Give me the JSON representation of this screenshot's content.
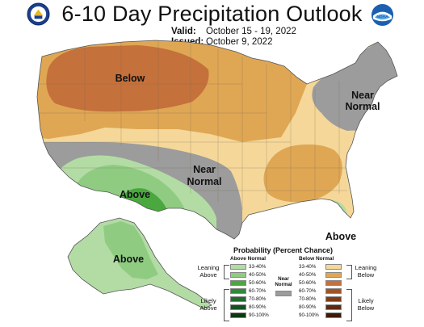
{
  "header": {
    "title": "6-10 Day Precipitation Outlook",
    "valid_label": "Valid:",
    "valid_value": "October 15 - 19, 2022",
    "issued_label": "Issued:",
    "issued_value": "October 9, 2022"
  },
  "logos": {
    "left": "department-of-commerce-seal-icon",
    "right": "noaa-logo-icon"
  },
  "map": {
    "labels": {
      "below": "Below",
      "near_normal_line1": "Near",
      "near_normal_line2": "Normal",
      "near_normal_ne_line1": "Near",
      "near_normal_ne_line2": "Normal",
      "above_sw": "Above",
      "above_fl": "Above",
      "above_ak": "Above"
    },
    "colors": {
      "near": "#9c9c9c",
      "above_33_40": "#b3dca5",
      "above_40_50": "#8fcc82",
      "above_50_60": "#4aa83e",
      "below_33_40": "#f5d899",
      "below_40_50": "#dfa754",
      "below_50_60": "#c5713b"
    }
  },
  "legend": {
    "title": "Probability (Percent Chance)",
    "above_header": "Above Normal",
    "below_header": "Below Normal",
    "leaning_above": [
      "Leaning",
      "Above"
    ],
    "likely_above": [
      "Likely",
      "Above"
    ],
    "leaning_below": [
      "Leaning",
      "Below"
    ],
    "likely_below": [
      "Likely",
      "Below"
    ],
    "near_normal": [
      "Near",
      "Normal"
    ],
    "above_bins": [
      {
        "label": "33-40%",
        "color": "#b3dca5"
      },
      {
        "label": "40-50%",
        "color": "#8fcc82"
      },
      {
        "label": "50-60%",
        "color": "#4aa83e"
      },
      {
        "label": "60-70%",
        "color": "#2f8a3a"
      },
      {
        "label": "70-80%",
        "color": "#1f6c2e"
      },
      {
        "label": "80-90%",
        "color": "#14521f"
      },
      {
        "label": "90-100%",
        "color": "#0b3812"
      }
    ],
    "below_bins": [
      {
        "label": "33-40%",
        "color": "#f5d899"
      },
      {
        "label": "40-50%",
        "color": "#dfa754"
      },
      {
        "label": "50-60%",
        "color": "#c5713b"
      },
      {
        "label": "60-70%",
        "color": "#a05425"
      },
      {
        "label": "70-80%",
        "color": "#7e3d17"
      },
      {
        "label": "80-90%",
        "color": "#5c2a0f"
      },
      {
        "label": "90-100%",
        "color": "#3e1a08"
      }
    ],
    "near_color": "#9c9c9c"
  }
}
